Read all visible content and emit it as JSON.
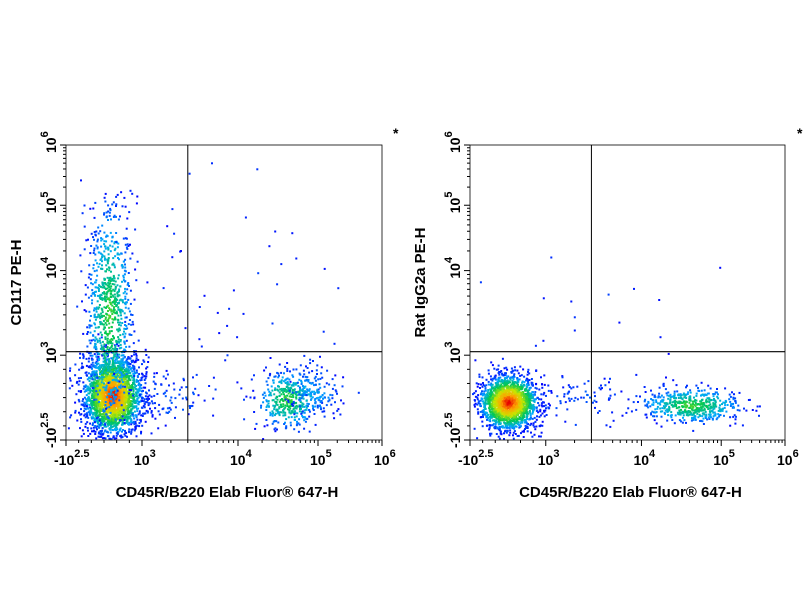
{
  "chart_data": [
    {
      "type": "scatter",
      "plot": "left",
      "xlabel": "CD45R/B220 Elab Fluor® 647-H",
      "ylabel": "CD117 PE-H",
      "corner_mark": "*",
      "x_scale": "biexponential",
      "y_scale": "biexponential",
      "xlim": [
        -316,
        1000000
      ],
      "ylim": [
        -316,
        1000000
      ],
      "x_ticks": [
        {
          "base": "-10",
          "exp": "2.5",
          "value": -316
        },
        {
          "base": "10",
          "exp": "3",
          "value": 1000
        },
        {
          "base": "10",
          "exp": "4",
          "value": 10000
        },
        {
          "base": "10",
          "exp": "5",
          "value": 100000
        },
        {
          "base": "10",
          "exp": "6",
          "value": 1000000
        }
      ],
      "y_ticks": [
        {
          "base": "-10",
          "exp": "2.5",
          "value": -316
        },
        {
          "base": "10",
          "exp": "3",
          "value": 1000
        },
        {
          "base": "10",
          "exp": "4",
          "value": 10000
        },
        {
          "base": "10",
          "exp": "5",
          "value": 100000
        },
        {
          "base": "10",
          "exp": "6",
          "value": 1000000
        }
      ],
      "gates": {
        "x_threshold": 3000,
        "y_threshold": 1100
      },
      "populations": [
        {
          "name_hint": "B220- CD117- dense cluster",
          "x_center": 150,
          "y_center": 100,
          "spread": "high",
          "density": "very high"
        },
        {
          "name_hint": "B220- CD117+ streak",
          "x_center": 150,
          "y_center": 3000,
          "spread": "vertical",
          "density": "medium"
        },
        {
          "name_hint": "B220+ CD117- cluster",
          "x_center": 45000,
          "y_center": 80,
          "spread": "medium",
          "density": "medium"
        },
        {
          "name_hint": "B220+ CD117+ sparse",
          "x_center": 40000,
          "y_center": 7000,
          "spread": "sparse",
          "density": "low"
        }
      ]
    },
    {
      "type": "scatter",
      "plot": "right",
      "xlabel": "CD45R/B220 Elab Fluor® 647-H",
      "ylabel": "Rat IgG2a PE-H",
      "corner_mark": "*",
      "x_scale": "biexponential",
      "y_scale": "biexponential",
      "xlim": [
        -316,
        1000000
      ],
      "ylim": [
        -316,
        1000000
      ],
      "x_ticks": [
        {
          "base": "-10",
          "exp": "2.5",
          "value": -316
        },
        {
          "base": "10",
          "exp": "3",
          "value": 1000
        },
        {
          "base": "10",
          "exp": "4",
          "value": 10000
        },
        {
          "base": "10",
          "exp": "5",
          "value": 100000
        },
        {
          "base": "10",
          "exp": "6",
          "value": 1000000
        }
      ],
      "y_ticks": [
        {
          "base": "-10",
          "exp": "2.5",
          "value": -316
        },
        {
          "base": "10",
          "exp": "3",
          "value": 1000
        },
        {
          "base": "10",
          "exp": "4",
          "value": 10000
        },
        {
          "base": "10",
          "exp": "5",
          "value": 100000
        },
        {
          "base": "10",
          "exp": "6",
          "value": 1000000
        }
      ],
      "gates": {
        "x_threshold": 3000,
        "y_threshold": 1100
      },
      "populations": [
        {
          "name_hint": "B220- isotype dense cluster",
          "x_center": 100,
          "y_center": 120,
          "spread": "high",
          "density": "very high"
        },
        {
          "name_hint": "B220+ isotype cluster",
          "x_center": 45000,
          "y_center": 100,
          "spread": "wide horizontal",
          "density": "medium"
        },
        {
          "name_hint": "sparse events above gate",
          "x_center": 5000,
          "y_center": 2000,
          "spread": "sparse",
          "density": "very low"
        }
      ]
    }
  ]
}
